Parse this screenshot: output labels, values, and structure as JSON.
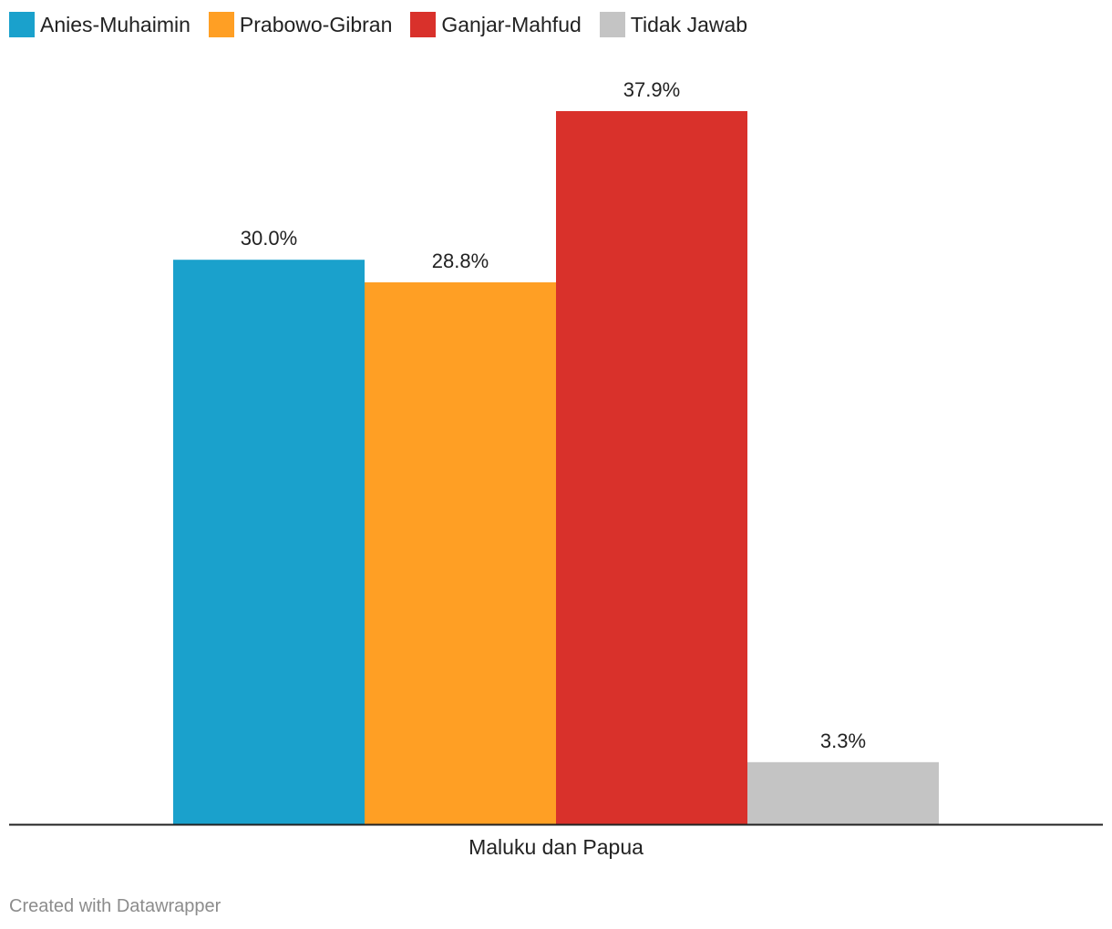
{
  "chart_data": {
    "type": "bar",
    "categories": [
      "Maluku dan Papua"
    ],
    "series": [
      {
        "name": "Anies-Muhaimin",
        "values": [
          30.0
        ],
        "label": "30.0%",
        "color": "#1aa1cc"
      },
      {
        "name": "Prabowo-Gibran",
        "values": [
          28.8
        ],
        "label": "28.8%",
        "color": "#ff9f24"
      },
      {
        "name": "Ganjar-Mahfud",
        "values": [
          37.9
        ],
        "label": "37.9%",
        "color": "#d9312b"
      },
      {
        "name": "Tidak Jawab",
        "values": [
          3.3
        ],
        "label": "3.3%",
        "color": "#c4c4c4"
      }
    ],
    "ylim": [
      0,
      37.9
    ],
    "grid": false,
    "legend_position": "top-left"
  },
  "footer": {
    "credit": "Created with Datawrapper"
  }
}
